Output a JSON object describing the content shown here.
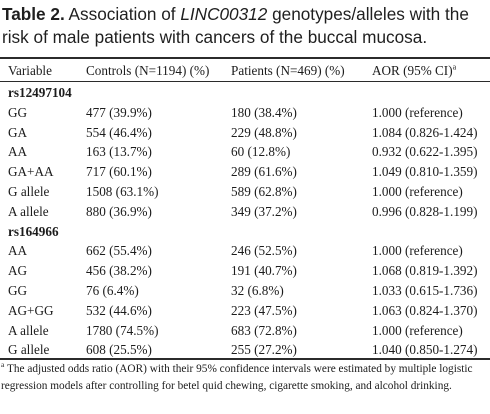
{
  "caption": {
    "label": "Table 2.",
    "text_before": " Association of ",
    "gene": "LINC00312",
    "text_after": " genotypes/alleles with the risk of male patients with cancers of the buccal mucosa."
  },
  "table": {
    "headers": {
      "variable": "Variable",
      "controls": "Controls (N=1194) (%)",
      "patients": "Patients (N=469) (%)",
      "aor": "AOR (95% CI)",
      "aor_marker": "a"
    },
    "sections": [
      {
        "name": "rs12497104",
        "rows": [
          {
            "variable": "GG",
            "controls": "477 (39.9%)",
            "patients": "180 (38.4%)",
            "aor": "1.000 (reference)"
          },
          {
            "variable": "GA",
            "controls": "554 (46.4%)",
            "patients": "229 (48.8%)",
            "aor": "1.084 (0.826-1.424)"
          },
          {
            "variable": "AA",
            "controls": "163 (13.7%)",
            "patients": "60 (12.8%)",
            "aor": "0.932 (0.622-1.395)"
          },
          {
            "variable": "GA+AA",
            "controls": "717 (60.1%)",
            "patients": "289 (61.6%)",
            "aor": "1.049 (0.810-1.359)"
          },
          {
            "variable": "G allele",
            "controls": "1508 (63.1%)",
            "patients": "589 (62.8%)",
            "aor": "1.000 (reference)"
          },
          {
            "variable": "A allele",
            "controls": "880 (36.9%)",
            "patients": "349 (37.2%)",
            "aor": "0.996 (0.828-1.199)"
          }
        ]
      },
      {
        "name": "rs164966",
        "rows": [
          {
            "variable": "AA",
            "controls": "662 (55.4%)",
            "patients": "246 (52.5%)",
            "aor": "1.000 (reference)"
          },
          {
            "variable": "AG",
            "controls": "456 (38.2%)",
            "patients": "191 (40.7%)",
            "aor": "1.068 (0.819-1.392)"
          },
          {
            "variable": "GG",
            "controls": "76 (6.4%)",
            "patients": "32 (6.8%)",
            "aor": "1.033 (0.615-1.736)"
          },
          {
            "variable": "AG+GG",
            "controls": "532 (44.6%)",
            "patients": "223 (47.5%)",
            "aor": "1.063 (0.824-1.370)"
          },
          {
            "variable": "A allele",
            "controls": "1780 (74.5%)",
            "patients": "683 (72.8%)",
            "aor": "1.000 (reference)"
          },
          {
            "variable": "G allele",
            "controls": "608 (25.5%)",
            "patients": "255 (27.2%)",
            "aor": "1.040 (0.850-1.274)"
          }
        ]
      }
    ]
  },
  "footnote": {
    "marker": "a",
    "text": " The adjusted odds ratio (AOR) with their 95% confidence intervals were estimated by multiple logistic regression models after controlling for betel quid chewing, cigarette smoking, and alcohol drinking."
  }
}
